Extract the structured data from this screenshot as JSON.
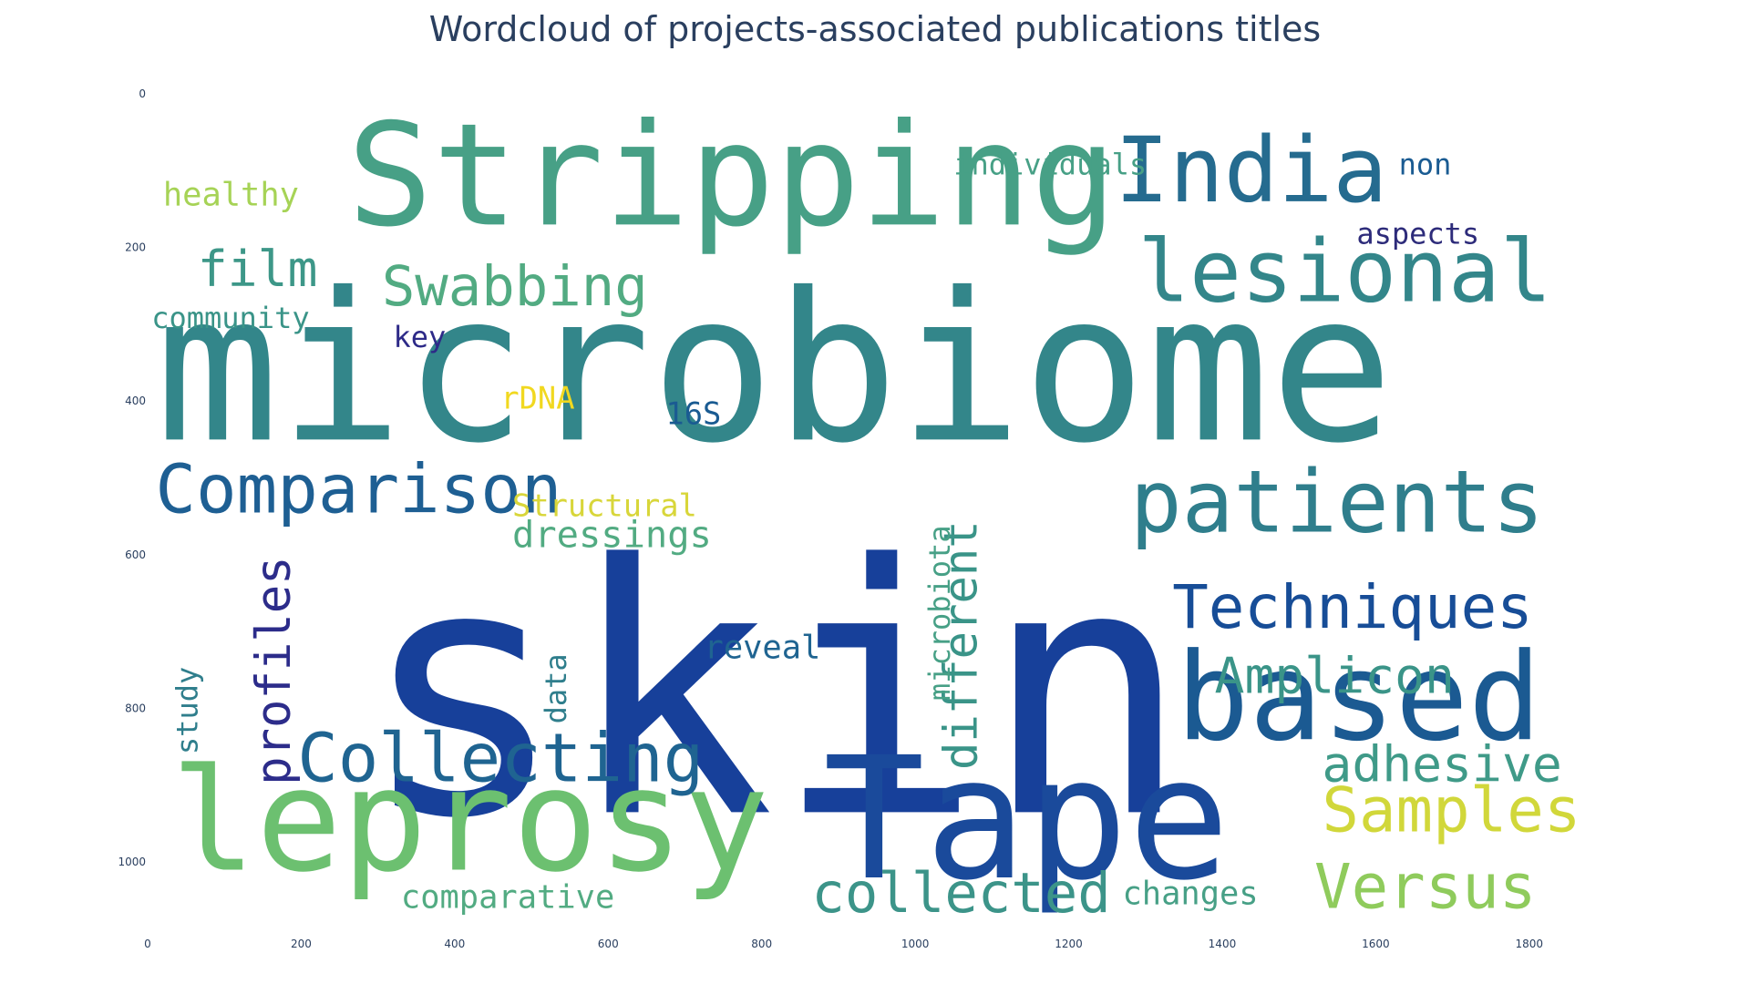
{
  "title": "Wordcloud of projects-associated publications titles",
  "chart_data": {
    "type": "wordcloud",
    "title": "Wordcloud of projects-associated publications titles",
    "xlim": [
      0,
      1900
    ],
    "ylim": [
      0,
      1090
    ],
    "y_reversed": true,
    "xticks": [
      0,
      200,
      400,
      600,
      800,
      1000,
      1200,
      1400,
      1600,
      1800
    ],
    "yticks": [
      0,
      200,
      400,
      600,
      800,
      1000
    ],
    "words": [
      {
        "text": "skin",
        "x": 275,
        "y": 935,
        "size": 450,
        "color": "#17409a",
        "rotate": 0
      },
      {
        "text": "microbiome",
        "x": 10,
        "y": 450,
        "size": 268,
        "color": "#33868a",
        "rotate": 0
      },
      {
        "text": "Tape",
        "x": 880,
        "y": 1020,
        "size": 220,
        "color": "#1a4a9b",
        "rotate": 0
      },
      {
        "text": "Stripping",
        "x": 260,
        "y": 170,
        "size": 185,
        "color": "#47a086",
        "rotate": 0
      },
      {
        "text": "leprosy",
        "x": 30,
        "y": 1010,
        "size": 185,
        "color": "#6cc070",
        "rotate": 0
      },
      {
        "text": "based",
        "x": 1340,
        "y": 840,
        "size": 158,
        "color": "#1b5a92",
        "rotate": 0
      },
      {
        "text": "India",
        "x": 1260,
        "y": 140,
        "size": 118,
        "color": "#256b8f",
        "rotate": 0
      },
      {
        "text": "lesional",
        "x": 1290,
        "y": 270,
        "size": 112,
        "color": "#33868a",
        "rotate": 0
      },
      {
        "text": "patients",
        "x": 1280,
        "y": 570,
        "size": 112,
        "color": "#2f7e8c",
        "rotate": 0
      },
      {
        "text": "Comparison",
        "x": 10,
        "y": 545,
        "size": 88,
        "color": "#1e5f93",
        "rotate": 0
      },
      {
        "text": "Collecting",
        "x": 195,
        "y": 895,
        "size": 88,
        "color": "#1f6491",
        "rotate": 0
      },
      {
        "text": "Techniques",
        "x": 1335,
        "y": 695,
        "size": 78,
        "color": "#174d97",
        "rotate": 0
      },
      {
        "text": "Samples",
        "x": 1530,
        "y": 960,
        "size": 80,
        "color": "#d1d73a",
        "rotate": 0
      },
      {
        "text": "Versus",
        "x": 1520,
        "y": 1060,
        "size": 80,
        "color": "#8fcb5c",
        "rotate": 0
      },
      {
        "text": "Amplicon",
        "x": 1390,
        "y": 780,
        "size": 65,
        "color": "#3a9488",
        "rotate": 0
      },
      {
        "text": "adhesive",
        "x": 1530,
        "y": 895,
        "size": 65,
        "color": "#3f9a88",
        "rotate": 0
      },
      {
        "text": "collected",
        "x": 865,
        "y": 1065,
        "size": 72,
        "color": "#3c9489",
        "rotate": 0
      },
      {
        "text": "Swabbing",
        "x": 305,
        "y": 275,
        "size": 72,
        "color": "#52ab82",
        "rotate": 0
      },
      {
        "text": "film",
        "x": 65,
        "y": 250,
        "size": 65,
        "color": "#3d9788",
        "rotate": 0
      },
      {
        "text": "profiles",
        "x": 185,
        "y": 900,
        "size": 62,
        "color": "#2c2c8a",
        "rotate": -90
      },
      {
        "text": "different",
        "x": 1080,
        "y": 880,
        "size": 60,
        "color": "#3a9488",
        "rotate": -90
      },
      {
        "text": "dressings",
        "x": 475,
        "y": 590,
        "size": 48,
        "color": "#52ab82",
        "rotate": 0
      },
      {
        "text": "Structural",
        "x": 475,
        "y": 550,
        "size": 40,
        "color": "#d8d63a",
        "rotate": 0
      },
      {
        "text": "healthy",
        "x": 20,
        "y": 145,
        "size": 42,
        "color": "#a6d356",
        "rotate": 0
      },
      {
        "text": "individuals",
        "x": 1050,
        "y": 105,
        "size": 38,
        "color": "#47a086",
        "rotate": 0
      },
      {
        "text": "non",
        "x": 1630,
        "y": 105,
        "size": 38,
        "color": "#1a5b92",
        "rotate": 0
      },
      {
        "text": "aspects",
        "x": 1575,
        "y": 195,
        "size": 38,
        "color": "#2d2b7a",
        "rotate": 0
      },
      {
        "text": "community",
        "x": 5,
        "y": 305,
        "size": 38,
        "color": "#3a9488",
        "rotate": 0
      },
      {
        "text": "key",
        "x": 320,
        "y": 330,
        "size": 38,
        "color": "#2d2a88",
        "rotate": 0
      },
      {
        "text": "rDNA",
        "x": 460,
        "y": 410,
        "size": 40,
        "color": "#f1d81f",
        "rotate": 0
      },
      {
        "text": "16S",
        "x": 675,
        "y": 430,
        "size": 40,
        "color": "#1a5b92",
        "rotate": 0
      },
      {
        "text": "reveal",
        "x": 725,
        "y": 735,
        "size": 42,
        "color": "#1f6491",
        "rotate": 0
      },
      {
        "text": "microbiota",
        "x": 1045,
        "y": 790,
        "size": 38,
        "color": "#47a086",
        "rotate": -90
      },
      {
        "text": "data",
        "x": 545,
        "y": 820,
        "size": 38,
        "color": "#2f7e8c",
        "rotate": -90
      },
      {
        "text": "study",
        "x": 65,
        "y": 860,
        "size": 38,
        "color": "#2f7e8c",
        "rotate": -90
      },
      {
        "text": "comparative",
        "x": 330,
        "y": 1060,
        "size": 42,
        "color": "#52ab82",
        "rotate": 0
      },
      {
        "text": "changes",
        "x": 1270,
        "y": 1055,
        "size": 42,
        "color": "#47a086",
        "rotate": 0
      }
    ]
  }
}
